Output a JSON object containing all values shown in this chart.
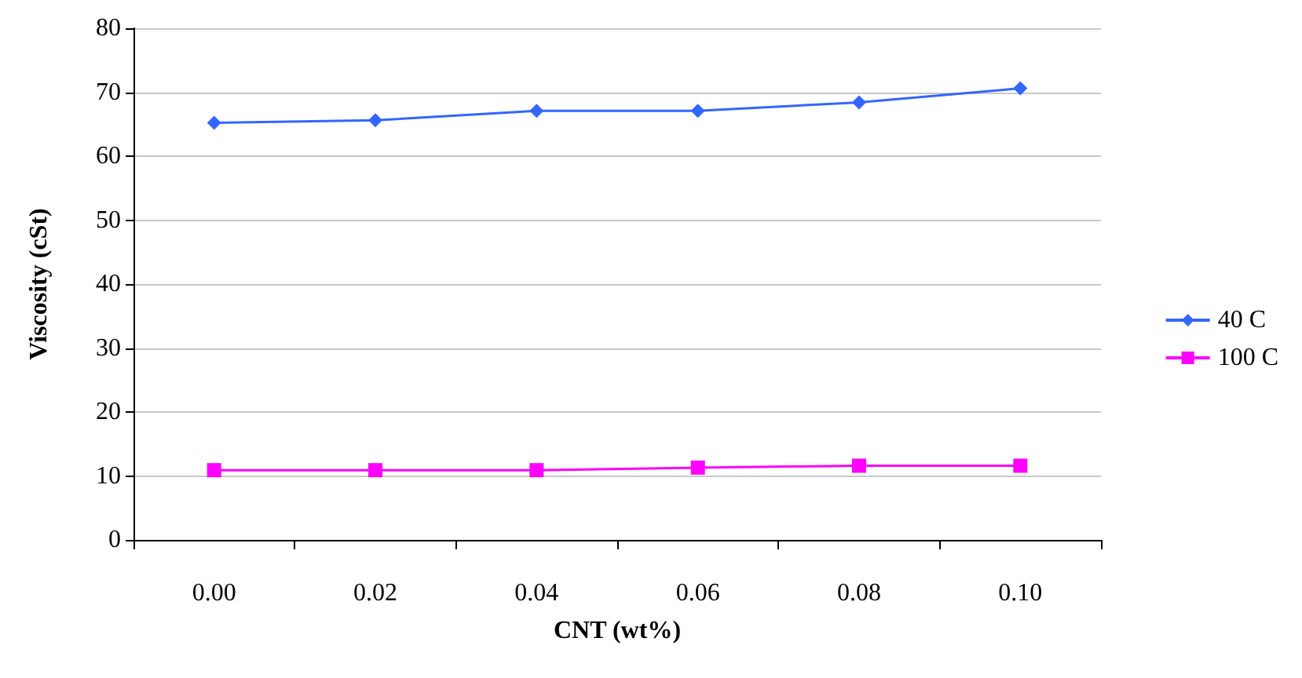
{
  "chart_data": {
    "type": "line",
    "xlabel": "CNT (wt%)",
    "ylabel": "Viscosity (cSt)",
    "categories": [
      "0.00",
      "0.02",
      "0.04",
      "0.06",
      "0.08",
      "0.10"
    ],
    "series": [
      {
        "name": "40 C",
        "color": "#3366ff",
        "marker": "diamond",
        "values": [
          65.2,
          65.6,
          67.1,
          67.1,
          68.4,
          70.6
        ]
      },
      {
        "name": "100 C",
        "color": "#ff00ff",
        "marker": "square",
        "values": [
          10.9,
          10.9,
          10.9,
          11.3,
          11.6,
          11.6
        ]
      }
    ],
    "ylim": [
      0,
      80
    ],
    "yticks": [
      0,
      10,
      20,
      30,
      40,
      50,
      60,
      70,
      80
    ],
    "grid": "y",
    "legend": "right"
  }
}
